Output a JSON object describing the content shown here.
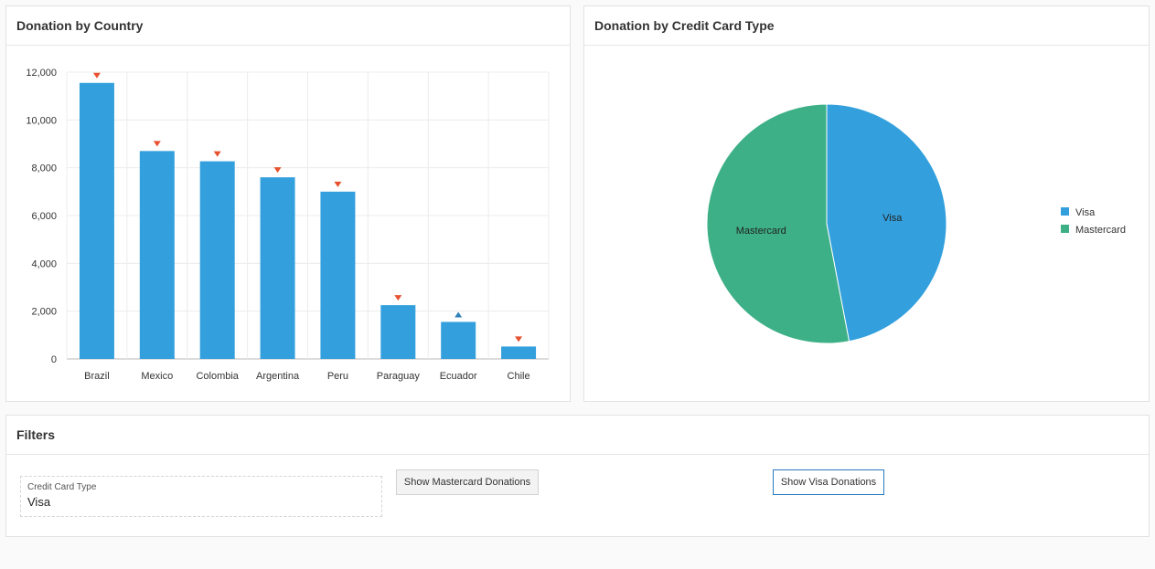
{
  "panels": {
    "country": {
      "title": "Donation by Country"
    },
    "card": {
      "title": "Donation by Credit Card Type"
    },
    "filters": {
      "title": "Filters"
    }
  },
  "filters": {
    "credit_card_type_label": "Credit Card Type",
    "credit_card_type_value": "Visa",
    "show_mastercard_label": "Show Mastercard Donations",
    "show_visa_label": "Show Visa Donations"
  },
  "colors": {
    "bar": "#33a0dd",
    "visa": "#33a0dd",
    "mastercard": "#3db087",
    "down_marker": "#e8512f",
    "up_marker": "#2e80b8"
  },
  "chart_data": [
    {
      "type": "bar",
      "title": "Donation by Country",
      "categories": [
        "Brazil",
        "Mexico",
        "Colombia",
        "Argentina",
        "Peru",
        "Paraguay",
        "Ecuador",
        "Chile"
      ],
      "values": [
        11550,
        8700,
        8270,
        7600,
        7000,
        2250,
        1550,
        520
      ],
      "trend": [
        "down",
        "down",
        "down",
        "down",
        "down",
        "down",
        "up",
        "down"
      ],
      "y_ticks": [
        "0",
        "2,000",
        "4,000",
        "6,000",
        "8,000",
        "10,000",
        "12,000"
      ],
      "ylim": [
        0,
        12000
      ],
      "grid": true
    },
    {
      "type": "pie",
      "title": "Donation by Credit Card Type",
      "labels": [
        "Visa",
        "Mastercard"
      ],
      "values": [
        47,
        53
      ],
      "legend": "right"
    }
  ]
}
